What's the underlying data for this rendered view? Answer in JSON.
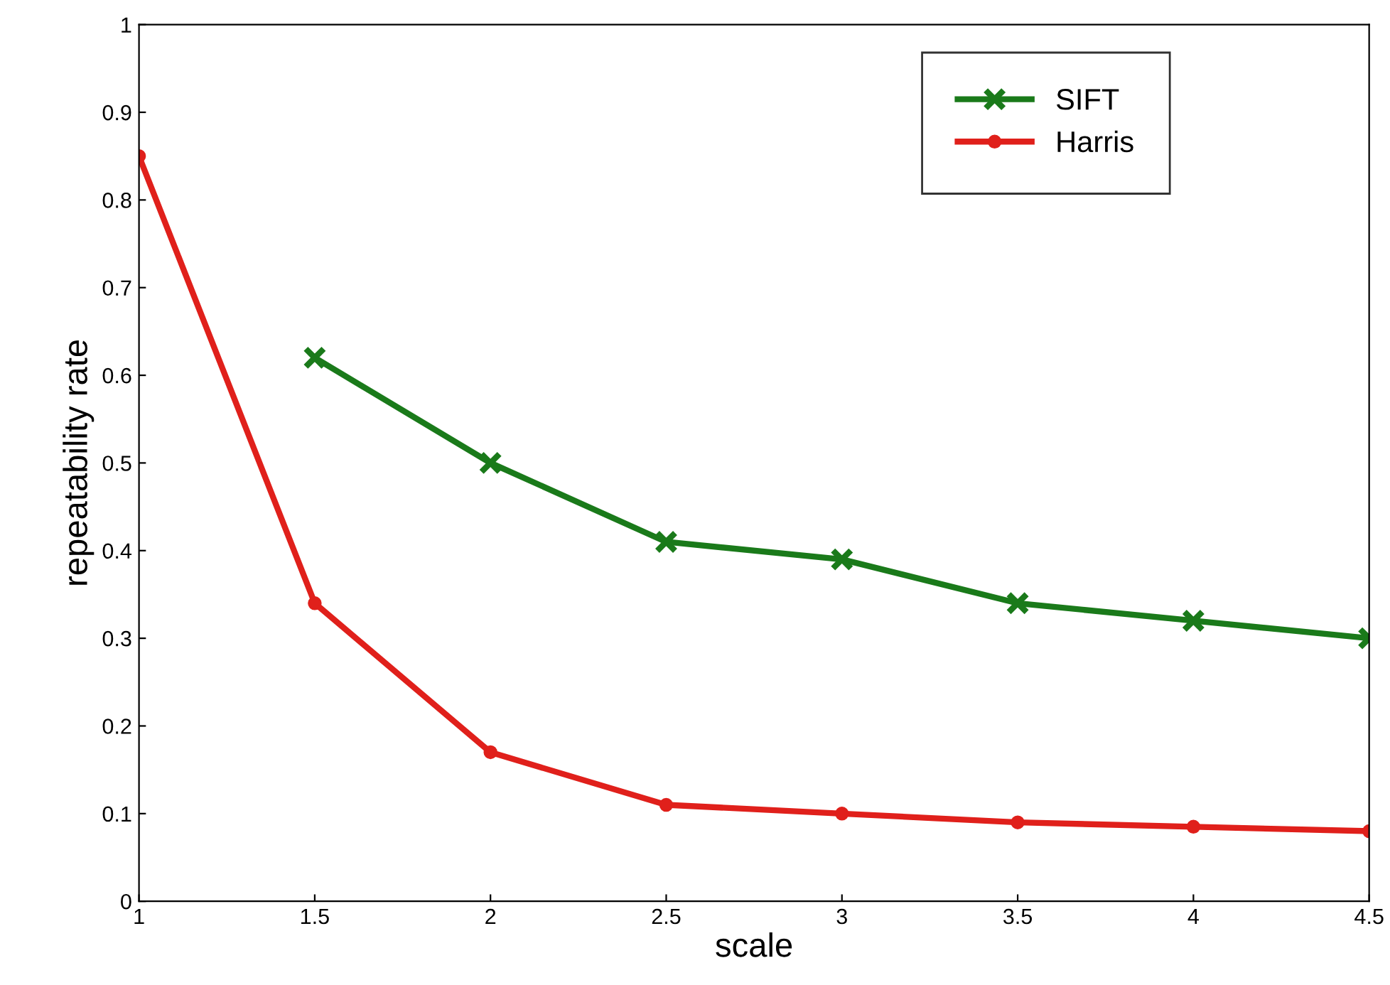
{
  "chart_data": {
    "type": "line",
    "xlabel": "scale",
    "ylabel": "repeatability rate",
    "xlim": [
      1,
      4.5
    ],
    "xticks": [
      1,
      1.5,
      2,
      2.5,
      3,
      3.5,
      4,
      4.5
    ],
    "ylim": [
      0,
      1
    ],
    "yticks": [
      0,
      0.1,
      0.2,
      0.3,
      0.4,
      0.5,
      0.6,
      0.7,
      0.8,
      0.9,
      1
    ],
    "grid": false,
    "legend": "top right",
    "line_style": "solid",
    "series": [
      {
        "name": "SIFT",
        "color": "#1a7a1a",
        "marker": "cross",
        "x": [
          1.5,
          2,
          2.5,
          3,
          3.5,
          4,
          4.5
        ],
        "values": [
          0.62,
          0.5,
          0.41,
          0.39,
          0.34,
          0.32,
          0.3
        ]
      },
      {
        "name": "Harris",
        "color": "#e0201b",
        "marker": "circle",
        "x": [
          1,
          1.5,
          2,
          2.5,
          3,
          3.5,
          4,
          4.5
        ],
        "values": [
          0.85,
          0.34,
          0.17,
          0.11,
          0.1,
          0.09,
          0.085,
          0.08
        ]
      }
    ]
  }
}
